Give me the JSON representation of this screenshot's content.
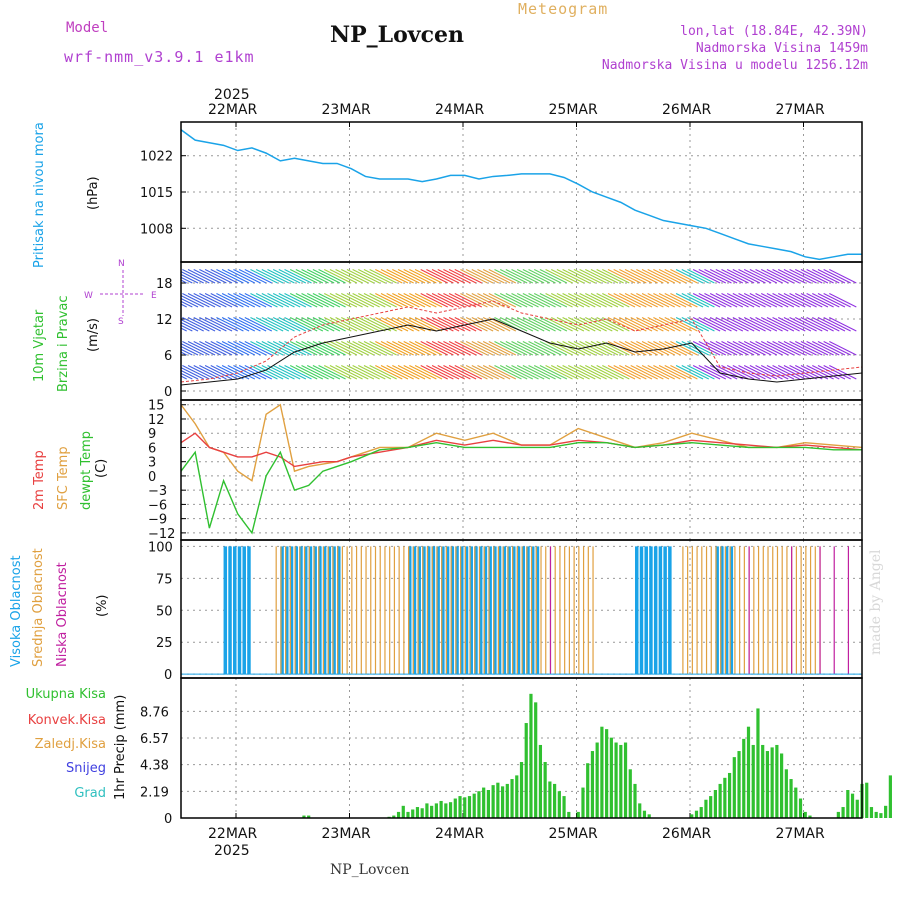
{
  "header": {
    "model_label": "Model",
    "model_name": "wrf-nmm_v3.9.1 e1km",
    "title": "NP_Lovcen",
    "subtitle": "Meteogram",
    "location_line1": "lon,lat (18.84E, 42.39N)",
    "location_line2": "Nadmorska Visina 1459m",
    "location_line3": "Nadmorska Visina u modelu 1256.12m"
  },
  "footer": {
    "station": "NP_Lovcen",
    "credit": "made by Angel"
  },
  "x_axis": {
    "year": "2025",
    "ticks": [
      "22MAR",
      "23MAR",
      "24MAR",
      "25MAR",
      "26MAR",
      "27MAR"
    ]
  },
  "colors": {
    "pressure": "#1aa3e8",
    "temp2m": "#e84040",
    "sfc": "#e0a040",
    "dewpt": "#30c030",
    "high_cloud": "#1aa3e8",
    "mid_cloud": "#e0a040",
    "low_cloud": "#c020a0",
    "precip": "#30c030"
  },
  "chart_data": [
    {
      "type": "line",
      "panel": "pressure",
      "ylabel_left": "Pritisak na nivou mora",
      "ylabel_unit": "(hPa)",
      "yticks": [
        "1022",
        "1015",
        "1008"
      ],
      "ylim": [
        1001.5,
        1028.5
      ],
      "x_hours": [
        0,
        3,
        6,
        9,
        12,
        15,
        18,
        21,
        24,
        27,
        30,
        33,
        36,
        39,
        42,
        45,
        48,
        51,
        54,
        57,
        60,
        63,
        66,
        69,
        72,
        75,
        78,
        81,
        84,
        87,
        90,
        93,
        96,
        99,
        102,
        105,
        108,
        111,
        114,
        117,
        120,
        123,
        126,
        129,
        132,
        135,
        138,
        141,
        144
      ],
      "values": [
        1027,
        1025,
        1024.5,
        1024,
        1023,
        1023.5,
        1022.5,
        1021,
        1021.5,
        1021,
        1020.5,
        1020.5,
        1019.5,
        1018,
        1017.5,
        1017.5,
        1017.5,
        1017,
        1017.5,
        1018.2,
        1018.2,
        1017.5,
        1018,
        1018.2,
        1018.5,
        1018.5,
        1018.5,
        1017.8,
        1016.5,
        1015,
        1014,
        1013,
        1011.5,
        1010.5,
        1009.5,
        1009,
        1008.5,
        1008,
        1007,
        1006,
        1005,
        1004.5,
        1004,
        1003.5,
        1002.5,
        1002,
        1002.5,
        1003,
        1003
      ]
    },
    {
      "type": "line",
      "panel": "wind",
      "ylabel_left": "10m Vjetar",
      "ylabel_left2": "Brzina i Pravac",
      "ylabel_unit": "(m/s)",
      "compass": [
        "N",
        "S",
        "W",
        "E"
      ],
      "yticks": [
        "0",
        "6",
        "12",
        "18"
      ],
      "ylim": [
        -1.5,
        21.5
      ],
      "x_hours": [
        0,
        6,
        12,
        18,
        24,
        30,
        36,
        42,
        48,
        54,
        60,
        66,
        72,
        78,
        84,
        90,
        96,
        102,
        108,
        114,
        120,
        126,
        132,
        138,
        144
      ],
      "speed": [
        1,
        1.5,
        2,
        3.5,
        6.5,
        8,
        9,
        10,
        11,
        10,
        11,
        12,
        10,
        8,
        7,
        8,
        6.5,
        7,
        8,
        3,
        2,
        1.5,
        2,
        2.5,
        3
      ],
      "gust": [
        1.5,
        2,
        3,
        5,
        9,
        11,
        12,
        13,
        14,
        13,
        14,
        15,
        13,
        12,
        11,
        12,
        10,
        11,
        12,
        4,
        3,
        2.5,
        3,
        3.5,
        4
      ]
    },
    {
      "type": "line",
      "panel": "temperature",
      "series_labels": [
        "2m Temp",
        "SFC Temp",
        "dewpt Temp"
      ],
      "ylabel_unit": "(C)",
      "yticks": [
        "15",
        "12",
        "9",
        "6",
        "3",
        "0",
        "−3",
        "−6",
        "−9",
        "−12"
      ],
      "ylim": [
        -13.5,
        16
      ],
      "x_hours": [
        0,
        3,
        6,
        9,
        12,
        15,
        18,
        21,
        24,
        27,
        30,
        33,
        36,
        42,
        48,
        54,
        60,
        66,
        72,
        78,
        84,
        90,
        96,
        102,
        108,
        114,
        120,
        126,
        132,
        138,
        144
      ],
      "temp2m": [
        7,
        9,
        6,
        5,
        4,
        4,
        5,
        4,
        2,
        2.5,
        3,
        3,
        4,
        5,
        6,
        7.5,
        6.5,
        7.5,
        6.5,
        6.5,
        7.5,
        7,
        6,
        6.5,
        7.5,
        7,
        6.5,
        6,
        6.5,
        6,
        5.5
      ],
      "sfc": [
        15,
        11,
        6,
        5,
        1,
        -1,
        13,
        15,
        1,
        2,
        2.5,
        3,
        4,
        6,
        6,
        9,
        7.5,
        9,
        6.5,
        6.5,
        10,
        8,
        6,
        7,
        9,
        7.5,
        6,
        6,
        7,
        6.5,
        6
      ],
      "dewpt": [
        1,
        5,
        -11,
        -1,
        -8,
        -12,
        0,
        5,
        -3,
        -2,
        1,
        2,
        3,
        5.5,
        6,
        7,
        6,
        6,
        6,
        6,
        7,
        7,
        6,
        6.5,
        7,
        6.5,
        6,
        6,
        6,
        5.5,
        5.5
      ]
    },
    {
      "type": "bar",
      "panel": "clouds",
      "series_labels": [
        "Visoka Oblacnost",
        "Srednja Oblacnost",
        "Niska Oblacnost"
      ],
      "ylabel_unit": "(%)",
      "yticks": [
        "100",
        "75",
        "50",
        "25",
        "0"
      ],
      "ylim": [
        0,
        100
      ],
      "high_segments": [
        [
          9,
          15
        ],
        [
          21,
          34
        ],
        [
          48,
          76
        ],
        [
          96,
          104
        ],
        [
          113,
          117
        ]
      ],
      "mid_segments": [
        [
          20,
          22
        ],
        [
          22,
          30
        ],
        [
          30,
          76
        ],
        [
          76,
          88
        ],
        [
          106,
          136
        ]
      ],
      "low_segments": [
        [
          1,
          2
        ],
        [
          5,
          6
        ],
        [
          7,
          8
        ],
        [
          22,
          23
        ],
        [
          78,
          79
        ],
        [
          82,
          84
        ],
        [
          95,
          96
        ],
        [
          120,
          122
        ],
        [
          128,
          130
        ],
        [
          134,
          144
        ]
      ]
    },
    {
      "type": "bar",
      "panel": "precipitation",
      "series_labels": [
        "Ukupna Kisa",
        "Konvek.Kisa",
        "Zaledj.Kisa",
        "Snijeg",
        "Grad"
      ],
      "label_colors": [
        "#30c030",
        "#e84040",
        "#e0a040",
        "#4040e0",
        "#30c0c0"
      ],
      "ylabel_unit": "1hr Precip (mm)",
      "yticks": [
        "8.76",
        "6.57",
        "4.38",
        "2.19",
        "0"
      ],
      "ylim": [
        0,
        11.5
      ],
      "start_hour": 0,
      "values": [
        0,
        0,
        0,
        0,
        0,
        0,
        0,
        0,
        0,
        0,
        0,
        0,
        0,
        0,
        0,
        0,
        0,
        0,
        0,
        0,
        0,
        0,
        0,
        0,
        0,
        0,
        0.2,
        0.2,
        0,
        0,
        0,
        0,
        0,
        0,
        0,
        0,
        0,
        0,
        0,
        0,
        0,
        0,
        0,
        0,
        0.1,
        0.2,
        0.5,
        1,
        0.5,
        0.7,
        0.9,
        0.8,
        1.2,
        1,
        1.2,
        1.4,
        1.2,
        1.3,
        1.6,
        1.8,
        1.7,
        1.8,
        2,
        2.2,
        2.5,
        2.3,
        2.7,
        2.9,
        2.6,
        2.8,
        3.2,
        3.5,
        4.6,
        7.8,
        10.2,
        9.5,
        6,
        4.6,
        3,
        2.8,
        2.2,
        1.8,
        0.5,
        0,
        0.5,
        2.5,
        4.5,
        5.5,
        6.2,
        7.5,
        7.3,
        6.6,
        6.2,
        6,
        6.2,
        4,
        2.8,
        1.2,
        0.6,
        0.3,
        0,
        0,
        0,
        0,
        0,
        0,
        0,
        0,
        0.3,
        0.6,
        0.9,
        1.5,
        1.8,
        2.3,
        2.8,
        3.3,
        3.7,
        5,
        5.5,
        6.5,
        7.5,
        6,
        9,
        6,
        5.5,
        5.8,
        6,
        5.3,
        4,
        3.2,
        2.5,
        1.6,
        0.5,
        0.2,
        0,
        0,
        0,
        0,
        0,
        0.5,
        0.9,
        2.3,
        2,
        1.5,
        2.8,
        2.9,
        0.9,
        0.5,
        0.4,
        1,
        3.5
      ]
    }
  ]
}
